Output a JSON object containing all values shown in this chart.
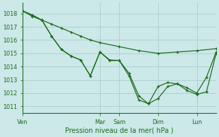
{
  "bg_color": "#cce8e8",
  "grid_color": "#aacccc",
  "line_color": "#1a6b1a",
  "title": "Pression niveau de la mer( hPa )",
  "ylim": [
    1010.5,
    1018.8
  ],
  "yticks": [
    1011,
    1012,
    1013,
    1014,
    1015,
    1016,
    1017,
    1018
  ],
  "xlim": [
    0,
    120
  ],
  "xtick_positions": [
    0,
    48,
    60,
    84,
    108
  ],
  "xtick_labels": [
    "Ven",
    "Mar",
    "Sam",
    "Dim",
    "Lun"
  ],
  "line1_x": [
    0,
    6,
    12,
    18,
    24,
    30,
    36,
    42,
    48,
    60,
    72,
    84,
    96,
    108,
    120
  ],
  "line1_y": [
    1018.2,
    1017.9,
    1017.5,
    1017.2,
    1016.9,
    1016.6,
    1016.3,
    1016.0,
    1015.8,
    1015.5,
    1015.2,
    1015.0,
    1015.1,
    1015.2,
    1015.35
  ],
  "line2_x": [
    0,
    6,
    12,
    18,
    24,
    30,
    36,
    42,
    48,
    54,
    60,
    66,
    72,
    78,
    84,
    90,
    96,
    102,
    108,
    114,
    120
  ],
  "line2_y": [
    1018.2,
    1017.8,
    1017.5,
    1016.3,
    1015.3,
    1014.8,
    1014.5,
    1013.3,
    1015.1,
    1014.5,
    1014.45,
    1013.3,
    1011.5,
    1011.2,
    1011.6,
    1012.5,
    1012.7,
    1012.2,
    1011.9,
    1012.1,
    1015.0
  ],
  "line3_x": [
    0,
    6,
    12,
    18,
    24,
    30,
    36,
    42,
    48,
    54,
    60,
    66,
    72,
    78,
    84,
    90,
    96,
    102,
    108,
    114,
    120
  ],
  "line3_y": [
    1018.2,
    1017.8,
    1017.5,
    1016.3,
    1015.3,
    1014.8,
    1014.5,
    1013.3,
    1015.1,
    1014.45,
    1014.45,
    1013.5,
    1011.8,
    1011.2,
    1012.5,
    1012.8,
    1012.7,
    1012.4,
    1012.0,
    1013.2,
    1015.1
  ]
}
